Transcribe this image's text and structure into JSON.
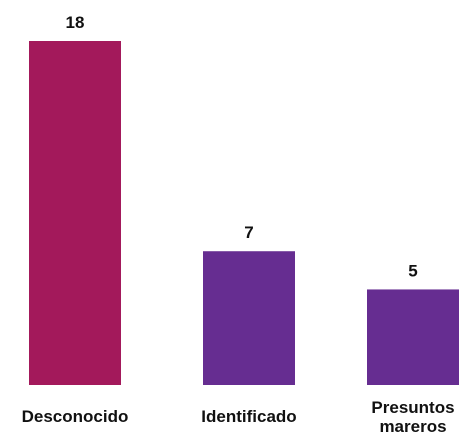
{
  "chart_data": {
    "type": "bar",
    "categories": [
      "Desconocido",
      "Identificado",
      "Presuntos mareros"
    ],
    "category_lines": [
      [
        "Desconocido"
      ],
      [
        "Identificado"
      ],
      [
        "Presuntos",
        "mareros"
      ]
    ],
    "values": [
      18,
      7,
      5
    ],
    "data_labels": [
      "18",
      "7",
      "5"
    ],
    "ylim": [
      0,
      18
    ],
    "grid": false,
    "legend": "none",
    "colors": [
      "#a3195b",
      "#662d91",
      "#662d91"
    ]
  }
}
